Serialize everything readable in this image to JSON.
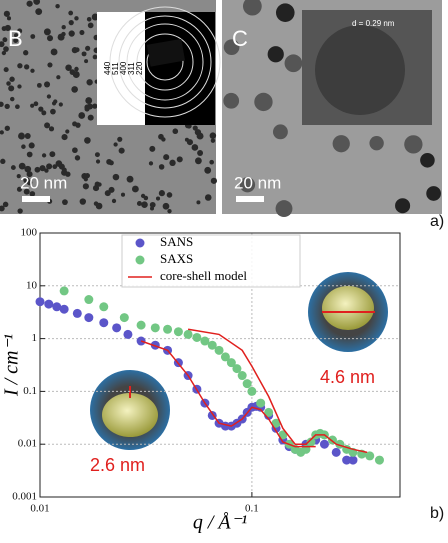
{
  "figure": {
    "panel_b": "B",
    "panel_c": "C",
    "scale_b": "20 nm",
    "scale_c": "20 nm",
    "lattice": "d = 0.29 nm",
    "rings": [
      "440",
      "511",
      "400",
      "311",
      "220"
    ],
    "label_a": "a)",
    "label_b": "b)"
  },
  "chart_data": {
    "type": "scatter",
    "x_label": "q / Å⁻¹",
    "y_label": "I / cm⁻¹",
    "log_x": true,
    "log_y": true,
    "grid": true,
    "legend": "top",
    "xlim": [
      0.01,
      0.5
    ],
    "ylim": [
      0.001,
      100
    ],
    "xticks": [
      0.01,
      0.1
    ],
    "yticks": [
      0.001,
      0.01,
      0.1,
      1,
      10,
      100
    ],
    "annotations": [
      "2.6 nm",
      "4.6 nm"
    ],
    "annotation_color": "#e0201e",
    "series": [
      {
        "name": "SANS",
        "color": "#5b55c9",
        "mode": "markers",
        "x": [
          0.01,
          0.011,
          0.012,
          0.013,
          0.015,
          0.017,
          0.02,
          0.023,
          0.026,
          0.03,
          0.035,
          0.04,
          0.045,
          0.05,
          0.055,
          0.06,
          0.065,
          0.07,
          0.075,
          0.08,
          0.085,
          0.09,
          0.095,
          0.1,
          0.105,
          0.11,
          0.12,
          0.13,
          0.14,
          0.15,
          0.16,
          0.18,
          0.2,
          0.22,
          0.25,
          0.28,
          0.3
        ],
        "values": [
          5,
          4.5,
          4,
          3.6,
          3,
          2.5,
          2,
          1.6,
          1.2,
          0.9,
          0.75,
          0.6,
          0.35,
          0.2,
          0.11,
          0.06,
          0.035,
          0.025,
          0.022,
          0.022,
          0.025,
          0.03,
          0.04,
          0.05,
          0.052,
          0.05,
          0.035,
          0.02,
          0.012,
          0.009,
          0.008,
          0.01,
          0.012,
          0.01,
          0.007,
          0.005,
          0.005
        ]
      },
      {
        "name": "SAXS",
        "color": "#72c784",
        "mode": "markers",
        "x": [
          0.013,
          0.017,
          0.02,
          0.025,
          0.03,
          0.035,
          0.04,
          0.045,
          0.05,
          0.055,
          0.06,
          0.065,
          0.07,
          0.075,
          0.08,
          0.085,
          0.09,
          0.095,
          0.1,
          0.11,
          0.12,
          0.13,
          0.14,
          0.15,
          0.16,
          0.17,
          0.18,
          0.19,
          0.2,
          0.21,
          0.22,
          0.24,
          0.26,
          0.28,
          0.3,
          0.33,
          0.36,
          0.4
        ],
        "values": [
          8,
          5.5,
          4,
          2.5,
          1.8,
          1.6,
          1.5,
          1.35,
          1.2,
          1.05,
          0.9,
          0.75,
          0.6,
          0.45,
          0.35,
          0.27,
          0.2,
          0.14,
          0.1,
          0.06,
          0.04,
          0.025,
          0.015,
          0.01,
          0.008,
          0.007,
          0.008,
          0.011,
          0.015,
          0.016,
          0.015,
          0.012,
          0.01,
          0.008,
          0.007,
          0.0065,
          0.006,
          0.005
        ]
      },
      {
        "name": "core-shell model",
        "color": "#e0201e",
        "mode": "line",
        "x": [
          0.05,
          0.07,
          0.09,
          0.1,
          0.12,
          0.14,
          0.16,
          0.18,
          0.2,
          0.22,
          0.25,
          0.3,
          0.35
        ],
        "values": [
          1.5,
          1.2,
          0.6,
          0.3,
          0.08,
          0.02,
          0.01,
          0.01,
          0.015,
          0.015,
          0.01,
          0.008,
          0.007
        ]
      },
      {
        "color": "#e0201e",
        "mode": "line",
        "x": [
          0.03,
          0.04,
          0.05,
          0.06,
          0.07,
          0.08,
          0.09,
          0.1,
          0.11,
          0.12,
          0.14,
          0.16,
          0.2
        ],
        "values": [
          0.9,
          0.6,
          0.2,
          0.06,
          0.025,
          0.022,
          0.03,
          0.05,
          0.045,
          0.03,
          0.011,
          0.009,
          0.009
        ]
      }
    ]
  }
}
